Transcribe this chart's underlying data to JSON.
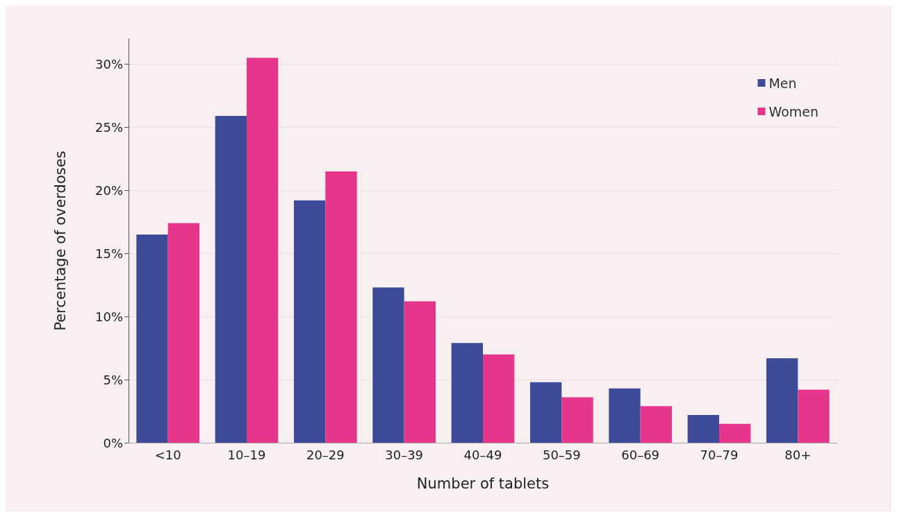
{
  "chart_data": {
    "type": "bar",
    "xlabel": "Number of tablets",
    "ylabel": "Percentage of overdoses",
    "categories": [
      "<10",
      "10–19",
      "20–29",
      "30–39",
      "40–49",
      "50–59",
      "60–69",
      "70–79",
      "80+"
    ],
    "series": [
      {
        "name": "Men",
        "color": "#3d4a97",
        "values": [
          16.5,
          25.9,
          19.2,
          12.3,
          7.9,
          4.8,
          4.3,
          2.2,
          6.7
        ]
      },
      {
        "name": "Women",
        "color": "#e5368b",
        "values": [
          17.4,
          30.5,
          21.5,
          11.2,
          7.0,
          3.6,
          2.9,
          1.5,
          4.2
        ]
      }
    ],
    "ylim": [
      0,
      32
    ],
    "yticks": [
      {
        "value": 0,
        "label": "0%"
      },
      {
        "value": 5,
        "label": "5%"
      },
      {
        "value": 10,
        "label": "10%"
      },
      {
        "value": 15,
        "label": "15%"
      },
      {
        "value": 20,
        "label": "20%"
      },
      {
        "value": 25,
        "label": "25%"
      },
      {
        "value": 30,
        "label": "30%"
      }
    ],
    "grid": "y",
    "legend": "top right"
  }
}
